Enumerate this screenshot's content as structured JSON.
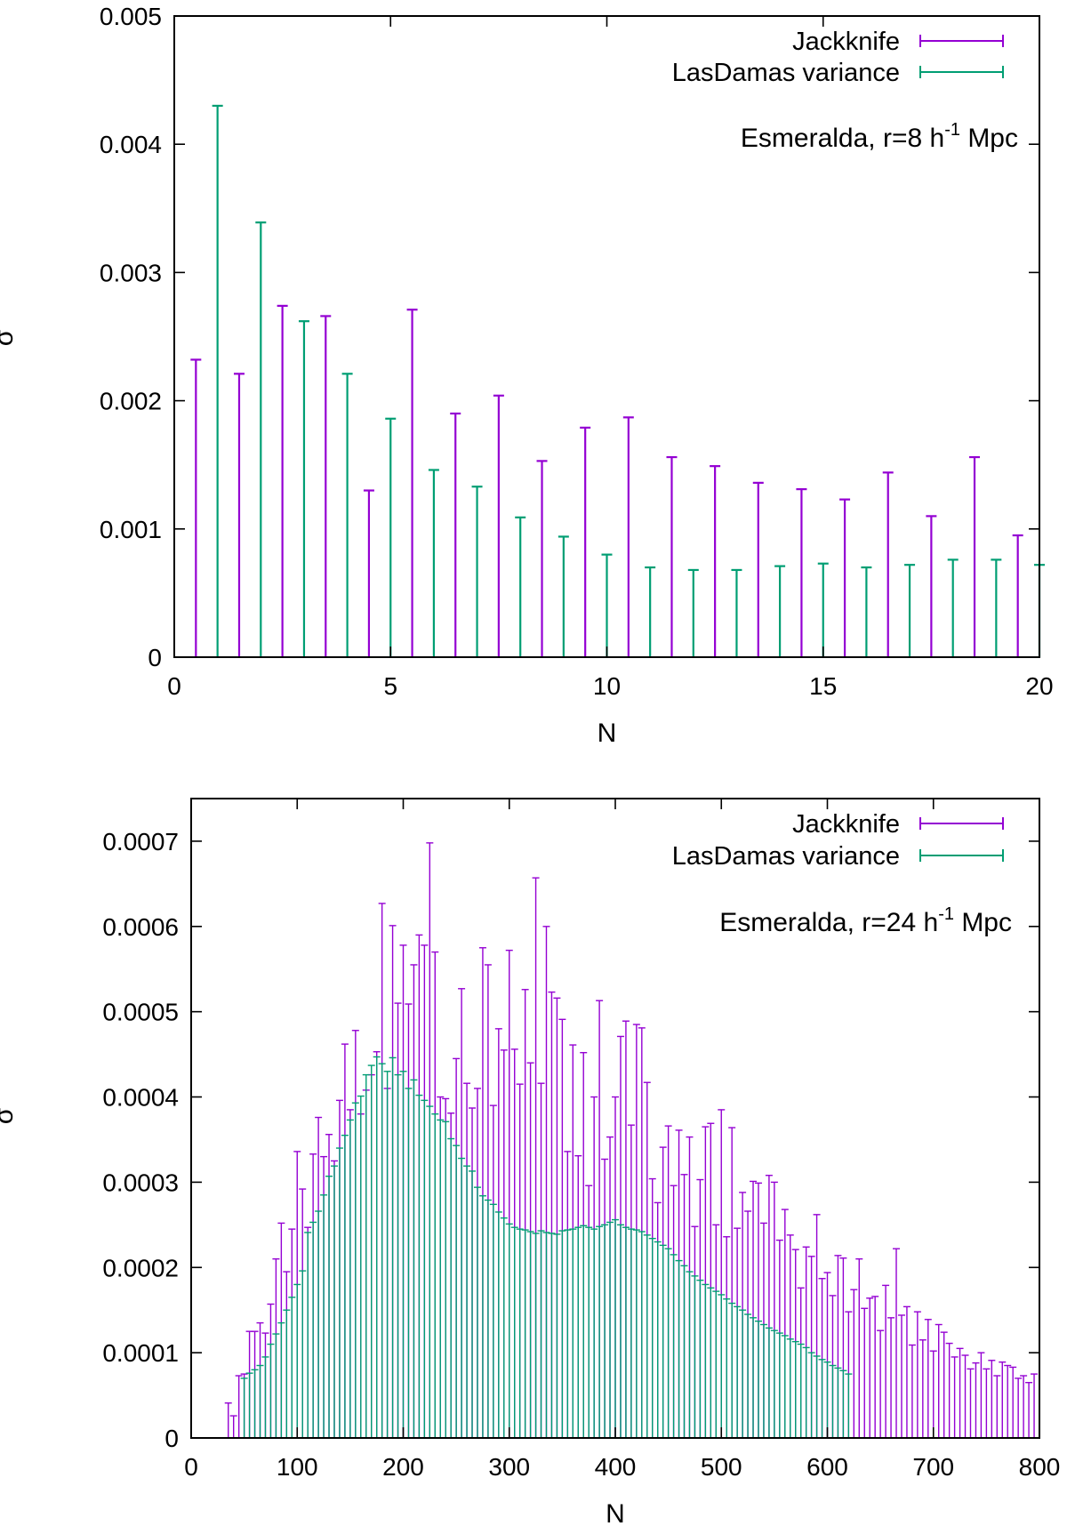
{
  "chart_data": [
    {
      "type": "bar",
      "title": "",
      "annotation": {
        "prefix": "Esmeralda, r=8 h",
        "sup": "-1",
        "suffix": " Mpc"
      },
      "xlabel": "N",
      "ylabel": "σ",
      "xlim": [
        0,
        20
      ],
      "ylim": [
        0,
        0.005
      ],
      "xticks": [
        0,
        5,
        10,
        15,
        20
      ],
      "xtick_labels": [
        "0",
        "5",
        "10",
        "15",
        "20"
      ],
      "yticks": [
        0,
        0.001,
        0.002,
        0.003,
        0.004,
        0.005
      ],
      "ytick_labels": [
        "0",
        "0.001",
        "0.002",
        "0.003",
        "0.004",
        "0.005"
      ],
      "legend_position": "top-right",
      "series": [
        {
          "name": "Jackknife",
          "color": "#9400d3",
          "x": [
            0.5,
            1.5,
            2.5,
            3.5,
            4.5,
            5.5,
            6.5,
            7.5,
            8.5,
            9.5,
            10.5,
            11.5,
            12.5,
            13.5,
            14.5,
            15.5,
            16.5,
            17.5,
            18.5,
            19.5
          ],
          "values": [
            0.00232,
            0.00221,
            0.00274,
            0.00266,
            0.0013,
            0.00271,
            0.0019,
            0.00204,
            0.00153,
            0.00179,
            0.00187,
            0.00156,
            0.00149,
            0.00136,
            0.00131,
            0.00123,
            0.00144,
            0.0011,
            0.00156,
            0.00095
          ]
        },
        {
          "name": "LasDamas variance",
          "color": "#009e73",
          "x": [
            1,
            2,
            3,
            4,
            5,
            6,
            7,
            8,
            9,
            10,
            11,
            12,
            13,
            14,
            15,
            16,
            17,
            18,
            19,
            20
          ],
          "values": [
            0.0043,
            0.00339,
            0.00262,
            0.00221,
            0.00186,
            0.00146,
            0.00133,
            0.00109,
            0.00094,
            0.0008,
            0.0007,
            0.00068,
            0.00068,
            0.00071,
            0.00073,
            0.0007,
            0.00072,
            0.00076,
            0.00076,
            0.00072
          ]
        }
      ]
    },
    {
      "type": "bar",
      "title": "",
      "annotation": {
        "prefix": "Esmeralda, r=24 h",
        "sup": "-1",
        "suffix": " Mpc"
      },
      "xlabel": "N",
      "ylabel": "σ",
      "xlim": [
        0,
        800
      ],
      "ylim": [
        0,
        0.00075
      ],
      "xticks": [
        0,
        100,
        200,
        300,
        400,
        500,
        600,
        700,
        800
      ],
      "xtick_labels": [
        "0",
        "100",
        "200",
        "300",
        "400",
        "500",
        "600",
        "700",
        "800"
      ],
      "yticks": [
        0,
        0.0001,
        0.0002,
        0.0003,
        0.0004,
        0.0005,
        0.0006,
        0.0007
      ],
      "ytick_labels": [
        "0",
        "0.0001",
        "0.0002",
        "0.0003",
        "0.0004",
        "0.0005",
        "0.0006",
        "0.0007"
      ],
      "legend_position": "top-right",
      "bin_width": 5,
      "series": [
        {
          "name": "Jackknife",
          "color": "#9400d3",
          "x_start": 35,
          "x_step": 5,
          "values": [
            4.1e-05,
            2.6e-05,
            7.3e-05,
            7.5e-05,
            0.000125,
            0.000125,
            0.000135,
            0.000123,
            0.000157,
            0.00021,
            0.000252,
            0.000195,
            0.000245,
            0.000336,
            0.000292,
            0.000247,
            0.000333,
            0.000376,
            0.00033,
            0.000356,
            0.000325,
            0.000396,
            0.000462,
            0.000385,
            0.000478,
            0.00038,
            0.000408,
            0.000426,
            0.000453,
            0.000627,
            0.00041,
            0.000601,
            0.00051,
            0.000578,
            0.000509,
            0.000555,
            0.00059,
            0.000578,
            0.000698,
            0.00057,
            0.0004,
            0.000398,
            0.000381,
            0.000445,
            0.000527,
            0.000416,
            0.000387,
            0.00041,
            0.000575,
            0.000555,
            0.00039,
            0.00048,
            0.000455,
            0.000572,
            0.000456,
            0.000415,
            0.000526,
            0.00044,
            0.000657,
            0.000416,
            0.0006,
            0.000523,
            0.000516,
            0.000491,
            0.000336,
            0.000461,
            0.000331,
            0.000452,
            0.000296,
            0.0004,
            0.000513,
            0.000327,
            0.000353,
            0.0004,
            0.000471,
            0.000489,
            0.000367,
            0.000485,
            0.000481,
            0.000417,
            0.000304,
            0.000276,
            0.000341,
            0.000366,
            0.000296,
            0.000361,
            0.000309,
            0.000353,
            0.000248,
            0.000303,
            0.000365,
            0.000369,
            0.00025,
            0.000385,
            0.000236,
            0.000364,
            0.000246,
            0.000288,
            0.000266,
            0.000301,
            0.000299,
            0.000252,
            0.000308,
            0.0003,
            0.000232,
            0.000268,
            0.000238,
            0.000221,
            0.000176,
            0.000224,
            0.000213,
            0.000262,
            0.000187,
            0.000194,
            0.000167,
            0.000214,
            0.000211,
            0.000148,
            0.000174,
            0.00021,
            0.000152,
            0.000164,
            0.000166,
            0.000126,
            0.000179,
            0.000141,
            0.000222,
            0.000144,
            0.000154,
            0.000109,
            0.000148,
            0.000115,
            0.000139,
            0.000102,
            0.000133,
            0.000124,
            0.000111,
            9.5e-05,
            0.000105,
            9.7e-05,
            8.1e-05,
            8.8e-05,
            0.0001,
            8.1e-05,
            9.1e-05,
            7.3e-05,
            8.9e-05,
            8.5e-05,
            8.3e-05,
            7e-05,
            7.3e-05,
            6.5e-05,
            7.5e-05
          ]
        },
        {
          "name": "LasDamas variance",
          "color": "#009e73",
          "x_start": 50,
          "x_step": 5,
          "values": [
            7e-05,
            7.6e-05,
            8e-05,
            8.5e-05,
            9.5e-05,
            0.00011,
            0.000122,
            0.000135,
            0.00015,
            0.000165,
            0.00018,
            0.000196,
            0.000241,
            0.000253,
            0.000266,
            0.000285,
            0.000307,
            0.000319,
            0.00034,
            0.000355,
            0.000373,
            0.000393,
            0.000401,
            0.000426,
            0.000437,
            0.000447,
            0.000439,
            0.00043,
            0.000446,
            0.000426,
            0.00043,
            0.00041,
            0.00042,
            0.000402,
            0.000396,
            0.000389,
            0.00038,
            0.000373,
            0.000371,
            0.000351,
            0.000343,
            0.000328,
            0.000319,
            0.000313,
            0.000294,
            0.000284,
            0.000279,
            0.000274,
            0.000265,
            0.000258,
            0.000251,
            0.000247,
            0.000245,
            0.000244,
            0.000242,
            0.00024,
            0.000243,
            0.000241,
            0.00024,
            0.000239,
            0.000243,
            0.000244,
            0.000245,
            0.000247,
            0.000249,
            0.000247,
            0.000245,
            0.000248,
            0.00025,
            0.000253,
            0.000256,
            0.00025,
            0.000247,
            0.000245,
            0.000244,
            0.000242,
            0.000238,
            0.000234,
            0.00023,
            0.000226,
            0.000222,
            0.000215,
            0.000208,
            0.000202,
            0.000195,
            0.00019,
            0.000185,
            0.00018,
            0.000176,
            0.000172,
            0.000168,
            0.000163,
            0.000158,
            0.000154,
            0.00015,
            0.000145,
            0.000141,
            0.000137,
            0.000133,
            0.000129,
            0.000126,
            0.000123,
            0.00012,
            0.000116,
            0.000113,
            0.00011,
            0.000106,
            0.0001,
            9.6e-05,
            9.2e-05,
            8.9e-05,
            8.5e-05,
            8.2e-05,
            7.9e-05,
            7.5e-05
          ]
        }
      ]
    }
  ]
}
